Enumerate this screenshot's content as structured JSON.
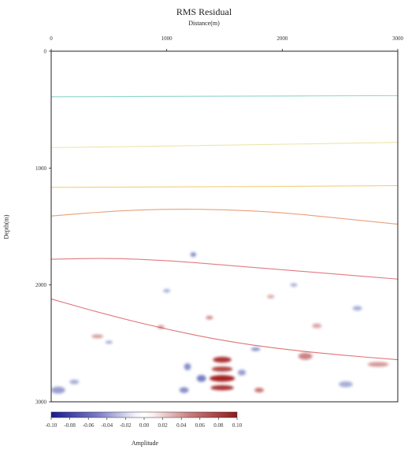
{
  "chart_data": {
    "type": "heatmap",
    "title": "RMS Residual",
    "xlabel": "Distance(m)",
    "ylabel": "Depth(m)",
    "xlim": [
      0,
      3000
    ],
    "ylim": [
      0,
      3000
    ],
    "y_inverted": true,
    "x_ticks": [
      "0",
      "1000",
      "2000",
      "3000"
    ],
    "y_ticks": [
      "0",
      "1000",
      "2000",
      "3000"
    ],
    "colorbar": {
      "label": "Amplitude",
      "range": [
        -0.1,
        0.1
      ],
      "ticks": [
        "-0.10",
        "-0.08",
        "-0.06",
        "-0.04",
        "-0.02",
        "0.00",
        "0.02",
        "0.04",
        "0.06",
        "0.08",
        "0.10"
      ],
      "colors": [
        "#1a1a8f",
        "#ffffff",
        "#8f1a1a"
      ]
    },
    "horizons": [
      {
        "color": "#8ed6c8",
        "points": [
          [
            0,
            390
          ],
          [
            1500,
            385
          ],
          [
            3000,
            380
          ]
        ]
      },
      {
        "color": "#ebe6a8",
        "points": [
          [
            0,
            825
          ],
          [
            1500,
            805
          ],
          [
            3000,
            780
          ]
        ]
      },
      {
        "color": "#f2d07a",
        "points": [
          [
            0,
            1165
          ],
          [
            1500,
            1160
          ],
          [
            3000,
            1150
          ]
        ]
      },
      {
        "color": "#e8a07a",
        "points": [
          [
            0,
            1410
          ],
          [
            500,
            1370
          ],
          [
            1000,
            1350
          ],
          [
            1500,
            1355
          ],
          [
            2000,
            1380
          ],
          [
            2500,
            1430
          ],
          [
            3000,
            1480
          ]
        ]
      },
      {
        "color": "#e07b82",
        "points": [
          [
            0,
            1780
          ],
          [
            500,
            1770
          ],
          [
            1000,
            1790
          ],
          [
            1500,
            1830
          ],
          [
            2000,
            1870
          ],
          [
            2500,
            1910
          ],
          [
            3000,
            1950
          ]
        ]
      },
      {
        "color": "#df7378",
        "points": [
          [
            0,
            2120
          ],
          [
            500,
            2260
          ],
          [
            1000,
            2380
          ],
          [
            1500,
            2480
          ],
          [
            2000,
            2550
          ],
          [
            2500,
            2600
          ],
          [
            3000,
            2640
          ]
        ]
      }
    ],
    "anomalies": [
      {
        "x": 1480,
        "y": 2640,
        "rx": 80,
        "ry": 25,
        "value": 0.09
      },
      {
        "x": 1480,
        "y": 2720,
        "rx": 90,
        "ry": 22,
        "value": 0.08
      },
      {
        "x": 1480,
        "y": 2800,
        "rx": 110,
        "ry": 28,
        "value": 0.1
      },
      {
        "x": 1480,
        "y": 2880,
        "rx": 100,
        "ry": 22,
        "value": 0.09
      },
      {
        "x": 1300,
        "y": 2800,
        "rx": 40,
        "ry": 30,
        "value": -0.05
      },
      {
        "x": 1180,
        "y": 2700,
        "rx": 30,
        "ry": 30,
        "value": -0.04
      },
      {
        "x": 1150,
        "y": 2900,
        "rx": 40,
        "ry": 25,
        "value": -0.04
      },
      {
        "x": 1650,
        "y": 2750,
        "rx": 35,
        "ry": 25,
        "value": -0.03
      },
      {
        "x": 1800,
        "y": 2900,
        "rx": 40,
        "ry": 20,
        "value": 0.05
      },
      {
        "x": 2200,
        "y": 2610,
        "rx": 60,
        "ry": 30,
        "value": 0.04
      },
      {
        "x": 1770,
        "y": 2550,
        "rx": 40,
        "ry": 15,
        "value": -0.04
      },
      {
        "x": 400,
        "y": 2440,
        "rx": 50,
        "ry": 15,
        "value": 0.03
      },
      {
        "x": 500,
        "y": 2490,
        "rx": 30,
        "ry": 12,
        "value": -0.03
      },
      {
        "x": 1230,
        "y": 1740,
        "rx": 25,
        "ry": 20,
        "value": -0.04
      },
      {
        "x": 1370,
        "y": 2280,
        "rx": 30,
        "ry": 15,
        "value": 0.04
      },
      {
        "x": 950,
        "y": 2360,
        "rx": 30,
        "ry": 15,
        "value": 0.03
      },
      {
        "x": 60,
        "y": 2900,
        "rx": 60,
        "ry": 30,
        "value": -0.03
      },
      {
        "x": 200,
        "y": 2830,
        "rx": 40,
        "ry": 20,
        "value": -0.02
      },
      {
        "x": 2830,
        "y": 2680,
        "rx": 90,
        "ry": 20,
        "value": 0.03
      },
      {
        "x": 2550,
        "y": 2850,
        "rx": 60,
        "ry": 25,
        "value": -0.02
      },
      {
        "x": 2300,
        "y": 2350,
        "rx": 40,
        "ry": 20,
        "value": 0.02
      },
      {
        "x": 2650,
        "y": 2200,
        "rx": 40,
        "ry": 20,
        "value": -0.02
      },
      {
        "x": 1900,
        "y": 2100,
        "rx": 30,
        "ry": 15,
        "value": 0.02
      },
      {
        "x": 1000,
        "y": 2050,
        "rx": 30,
        "ry": 15,
        "value": -0.02
      },
      {
        "x": 2100,
        "y": 2000,
        "rx": 30,
        "ry": 15,
        "value": -0.02
      }
    ]
  }
}
